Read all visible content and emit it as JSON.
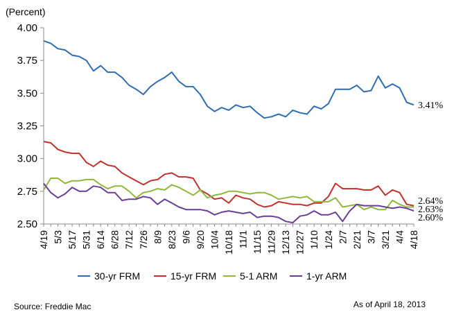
{
  "chart_data": {
    "type": "line",
    "ylabel": "(Percent)",
    "ylim": [
      2.5,
      4.0
    ],
    "y_ticks": [
      "4.00",
      "3.75",
      "3.50",
      "3.25",
      "3.00",
      "2.75",
      "2.50"
    ],
    "x_tick_labels": [
      "4/19",
      "5/3",
      "5/17",
      "5/31",
      "6/14",
      "6/28",
      "7/12",
      "7/26",
      "8/9",
      "8/23",
      "9/6",
      "9/20",
      "10/4",
      "10/18",
      "11/1",
      "11/15",
      "11/29",
      "12/13",
      "12/27",
      "1/10",
      "1/24",
      "2/7",
      "2/21",
      "3/7",
      "3/21",
      "4/4",
      "4/18"
    ],
    "series": [
      {
        "name": "30-yr FRM",
        "color": "#2e6db4",
        "end_label": "3.41%",
        "values": [
          3.9,
          3.88,
          3.84,
          3.83,
          3.79,
          3.78,
          3.75,
          3.67,
          3.71,
          3.66,
          3.66,
          3.62,
          3.56,
          3.53,
          3.49,
          3.55,
          3.59,
          3.62,
          3.66,
          3.59,
          3.55,
          3.55,
          3.49,
          3.4,
          3.36,
          3.39,
          3.37,
          3.41,
          3.39,
          3.4,
          3.35,
          3.31,
          3.32,
          3.34,
          3.32,
          3.37,
          3.35,
          3.34,
          3.4,
          3.38,
          3.42,
          3.53,
          3.53,
          3.53,
          3.56,
          3.51,
          3.52,
          3.63,
          3.54,
          3.57,
          3.54,
          3.43,
          3.41
        ]
      },
      {
        "name": "15-yr FRM",
        "color": "#c0302a",
        "end_label": "2.64%",
        "values": [
          3.13,
          3.12,
          3.07,
          3.05,
          3.04,
          3.04,
          2.97,
          2.94,
          2.98,
          2.95,
          2.94,
          2.89,
          2.86,
          2.83,
          2.8,
          2.83,
          2.84,
          2.88,
          2.89,
          2.86,
          2.86,
          2.85,
          2.76,
          2.73,
          2.69,
          2.7,
          2.66,
          2.72,
          2.7,
          2.69,
          2.65,
          2.63,
          2.64,
          2.67,
          2.66,
          2.65,
          2.65,
          2.64,
          2.66,
          2.66,
          2.71,
          2.81,
          2.77,
          2.77,
          2.77,
          2.76,
          2.76,
          2.79,
          2.72,
          2.76,
          2.74,
          2.65,
          2.64
        ]
      },
      {
        "name": "5-1 ARM",
        "color": "#8db83a",
        "end_label": "2.63%",
        "values": [
          2.76,
          2.85,
          2.85,
          2.81,
          2.83,
          2.83,
          2.84,
          2.84,
          2.8,
          2.77,
          2.79,
          2.79,
          2.75,
          2.7,
          2.74,
          2.75,
          2.77,
          2.76,
          2.8,
          2.78,
          2.75,
          2.72,
          2.76,
          2.7,
          2.72,
          2.73,
          2.75,
          2.75,
          2.74,
          2.73,
          2.74,
          2.74,
          2.72,
          2.69,
          2.7,
          2.71,
          2.7,
          2.71,
          2.67,
          2.67,
          2.67,
          2.7,
          2.63,
          2.64,
          2.65,
          2.61,
          2.63,
          2.61,
          2.61,
          2.68,
          2.65,
          2.63,
          2.63
        ]
      },
      {
        "name": "1-yr ARM",
        "color": "#6a3c96",
        "end_label": "2.60%",
        "values": [
          2.81,
          2.74,
          2.7,
          2.73,
          2.78,
          2.75,
          2.75,
          2.79,
          2.78,
          2.74,
          2.74,
          2.68,
          2.69,
          2.69,
          2.71,
          2.7,
          2.65,
          2.69,
          2.66,
          2.63,
          2.61,
          2.61,
          2.61,
          2.6,
          2.57,
          2.59,
          2.6,
          2.59,
          2.58,
          2.59,
          2.55,
          2.56,
          2.56,
          2.55,
          2.52,
          2.51,
          2.56,
          2.57,
          2.6,
          2.57,
          2.57,
          2.59,
          2.52,
          2.6,
          2.65,
          2.64,
          2.64,
          2.64,
          2.63,
          2.62,
          2.63,
          2.62,
          2.6
        ]
      }
    ],
    "legend_position": "bottom",
    "grid": false
  },
  "footer": {
    "source": "Source: Freddie Mac",
    "as_of": "As of April 18, 2013"
  }
}
